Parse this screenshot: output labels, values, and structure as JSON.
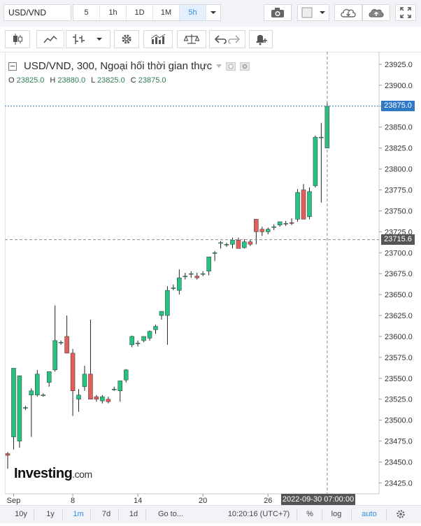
{
  "toolbar": {
    "symbol": "USD/VND",
    "intervals": [
      "5",
      "1h",
      "1D",
      "1M",
      "5h"
    ],
    "active_interval": "5h"
  },
  "legend": {
    "title": "USD/VND, 300, Ngoại hối thời gian thực",
    "o_label": "O",
    "o_value": "23825.0",
    "h_label": "H",
    "h_value": "23880.0",
    "l_label": "L",
    "l_value": "23825.0",
    "c_label": "C",
    "c_value": "23875.0"
  },
  "crosshair": {
    "price_label": "23715.6",
    "time_label": "2022-09-30 07:00:00"
  },
  "last_price_label": "23875.0",
  "logo": {
    "main": "Investing",
    "suffix": ".com"
  },
  "bottom": {
    "ranges": [
      "10y",
      "1y",
      "1m",
      "7d",
      "1d"
    ],
    "active_range": "1m",
    "goto": "Go to...",
    "time": "10:20:16 (UTC+7)",
    "percent": "%",
    "log": "log",
    "auto": "auto"
  },
  "colors": {
    "up": "#26c281",
    "down": "#e35d5b",
    "accent": "#2f8de4",
    "last_price": "#2f79c7"
  },
  "chart_data": {
    "type": "candlestick",
    "title": "USD/VND, 300, Ngoại hối thời gian thực",
    "ylim": [
      23412,
      23940
    ],
    "yticks": [
      23425,
      23450,
      23475,
      23500,
      23525,
      23550,
      23575,
      23600,
      23625,
      23650,
      23675,
      23700,
      23725,
      23750,
      23775,
      23800,
      23825,
      23850,
      23875,
      23900,
      23925
    ],
    "xtick_labels": [
      "Sep",
      "8",
      "14",
      "20",
      "26"
    ],
    "xtick_indices": [
      1,
      11,
      22,
      33,
      44
    ],
    "grid": false,
    "candles": [
      {
        "o": 23460,
        "h": 23462,
        "l": 23442,
        "c": 23458
      },
      {
        "o": 23480,
        "h": 23562,
        "l": 23465,
        "c": 23562
      },
      {
        "o": 23475,
        "h": 23553,
        "l": 23467,
        "c": 23553
      },
      {
        "o": 23515,
        "h": 23517,
        "l": 23512,
        "c": 23515
      },
      {
        "o": 23530,
        "h": 23538,
        "l": 23480,
        "c": 23535
      },
      {
        "o": 23530,
        "h": 23560,
        "l": 23528,
        "c": 23555
      },
      {
        "o": 23530,
        "h": 23532,
        "l": 23528,
        "c": 23530
      },
      {
        "o": 23545,
        "h": 23558,
        "l": 23540,
        "c": 23558
      },
      {
        "o": 23560,
        "h": 23637,
        "l": 23558,
        "c": 23595
      },
      {
        "o": 23593,
        "h": 23595,
        "l": 23590,
        "c": 23593
      },
      {
        "o": 23600,
        "h": 23625,
        "l": 23580,
        "c": 23580
      },
      {
        "o": 23580,
        "h": 23585,
        "l": 23505,
        "c": 23535
      },
      {
        "o": 23525,
        "h": 23537,
        "l": 23510,
        "c": 23530
      },
      {
        "o": 23540,
        "h": 23565,
        "l": 23535,
        "c": 23555
      },
      {
        "o": 23555,
        "h": 23620,
        "l": 23525,
        "c": 23525
      },
      {
        "o": 23528,
        "h": 23530,
        "l": 23522,
        "c": 23525
      },
      {
        "o": 23523,
        "h": 23530,
        "l": 23520,
        "c": 23528
      },
      {
        "o": 23525,
        "h": 23528,
        "l": 23520,
        "c": 23522
      },
      {
        "o": 23537,
        "h": 23540,
        "l": 23535,
        "c": 23537
      },
      {
        "o": 23535,
        "h": 23547,
        "l": 23522,
        "c": 23547
      },
      {
        "o": 23548,
        "h": 23561,
        "l": 23545,
        "c": 23560
      },
      {
        "o": 23590,
        "h": 23601,
        "l": 23587,
        "c": 23600
      },
      {
        "o": 23592,
        "h": 23595,
        "l": 23588,
        "c": 23592
      },
      {
        "o": 23595,
        "h": 23600,
        "l": 23593,
        "c": 23600
      },
      {
        "o": 23598,
        "h": 23607,
        "l": 23595,
        "c": 23606
      },
      {
        "o": 23608,
        "h": 23614,
        "l": 23603,
        "c": 23612
      },
      {
        "o": 23625,
        "h": 23630,
        "l": 23620,
        "c": 23630
      },
      {
        "o": 23625,
        "h": 23660,
        "l": 23590,
        "c": 23655
      },
      {
        "o": 23658,
        "h": 23662,
        "l": 23655,
        "c": 23658
      },
      {
        "o": 23655,
        "h": 23680,
        "l": 23650,
        "c": 23670
      },
      {
        "o": 23672,
        "h": 23676,
        "l": 23668,
        "c": 23672
      },
      {
        "o": 23675,
        "h": 23678,
        "l": 23670,
        "c": 23675
      },
      {
        "o": 23672,
        "h": 23676,
        "l": 23668,
        "c": 23670
      },
      {
        "o": 23675,
        "h": 23678,
        "l": 23672,
        "c": 23675
      },
      {
        "o": 23678,
        "h": 23695,
        "l": 23673,
        "c": 23695
      },
      {
        "o": 23700,
        "h": 23702,
        "l": 23690,
        "c": 23700
      },
      {
        "o": 23712,
        "h": 23714,
        "l": 23705,
        "c": 23712
      },
      {
        "o": 23710,
        "h": 23712,
        "l": 23707,
        "c": 23710
      },
      {
        "o": 23710,
        "h": 23718,
        "l": 23705,
        "c": 23715
      },
      {
        "o": 23715,
        "h": 23718,
        "l": 23707,
        "c": 23705
      },
      {
        "o": 23706,
        "h": 23716,
        "l": 23705,
        "c": 23713
      },
      {
        "o": 23713,
        "h": 23716,
        "l": 23708,
        "c": 23710
      },
      {
        "o": 23740,
        "h": 23740,
        "l": 23710,
        "c": 23725
      },
      {
        "o": 23728,
        "h": 23731,
        "l": 23720,
        "c": 23725
      },
      {
        "o": 23725,
        "h": 23730,
        "l": 23722,
        "c": 23728
      },
      {
        "o": 23731,
        "h": 23734,
        "l": 23727,
        "c": 23731
      },
      {
        "o": 23733,
        "h": 23737,
        "l": 23731,
        "c": 23737
      },
      {
        "o": 23735,
        "h": 23738,
        "l": 23732,
        "c": 23735
      },
      {
        "o": 23736,
        "h": 23741,
        "l": 23733,
        "c": 23735
      },
      {
        "o": 23740,
        "h": 23776,
        "l": 23737,
        "c": 23772
      },
      {
        "o": 23775,
        "h": 23782,
        "l": 23740,
        "c": 23740
      },
      {
        "o": 23743,
        "h": 23778,
        "l": 23740,
        "c": 23773
      },
      {
        "o": 23780,
        "h": 23840,
        "l": 23778,
        "c": 23838
      },
      {
        "o": 23838,
        "h": 23855,
        "l": 23760,
        "c": 23838
      },
      {
        "o": 23825,
        "h": 23880,
        "l": 23825,
        "c": 23875
      }
    ]
  }
}
